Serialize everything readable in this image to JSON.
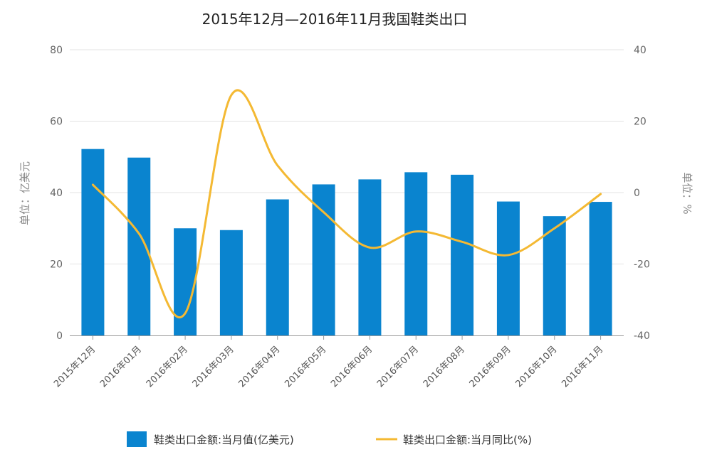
{
  "chart_data": {
    "type": "bar",
    "title": "2015年12月—2016年11月我国鞋类出口",
    "categories": [
      "2015年12月",
      "2016年01月",
      "2016年02月",
      "2016年03月",
      "2016年04月",
      "2016年05月",
      "2016年06月",
      "2016年07月",
      "2016年08月",
      "2016年09月",
      "2016年10月",
      "2016年11月"
    ],
    "y_left": {
      "label": "单位：亿美元",
      "range": [
        0,
        80
      ],
      "ticks": [
        0,
        20,
        40,
        60,
        80
      ]
    },
    "y_right": {
      "label": "单位：%",
      "range": [
        -40,
        40
      ],
      "ticks": [
        -40,
        -20,
        0,
        20,
        40
      ]
    },
    "series": [
      {
        "name": "鞋类出口金额:当月值(亿美元)",
        "type": "bar",
        "axis": "left",
        "color": "#0a84cf",
        "values": [
          52.2,
          49.8,
          30.0,
          29.5,
          38.1,
          42.3,
          43.7,
          45.7,
          45.0,
          37.5,
          33.4,
          37.4
        ]
      },
      {
        "name": "鞋类出口金额:当月同比(%)",
        "type": "line",
        "axis": "right",
        "color": "#f4b933",
        "values": [
          2.2,
          -11.5,
          -33.8,
          27.3,
          7.6,
          -5.5,
          -15.4,
          -10.9,
          -13.8,
          -17.5,
          -10.0,
          -0.4
        ]
      }
    ],
    "grid": true,
    "legend": "bottom"
  }
}
